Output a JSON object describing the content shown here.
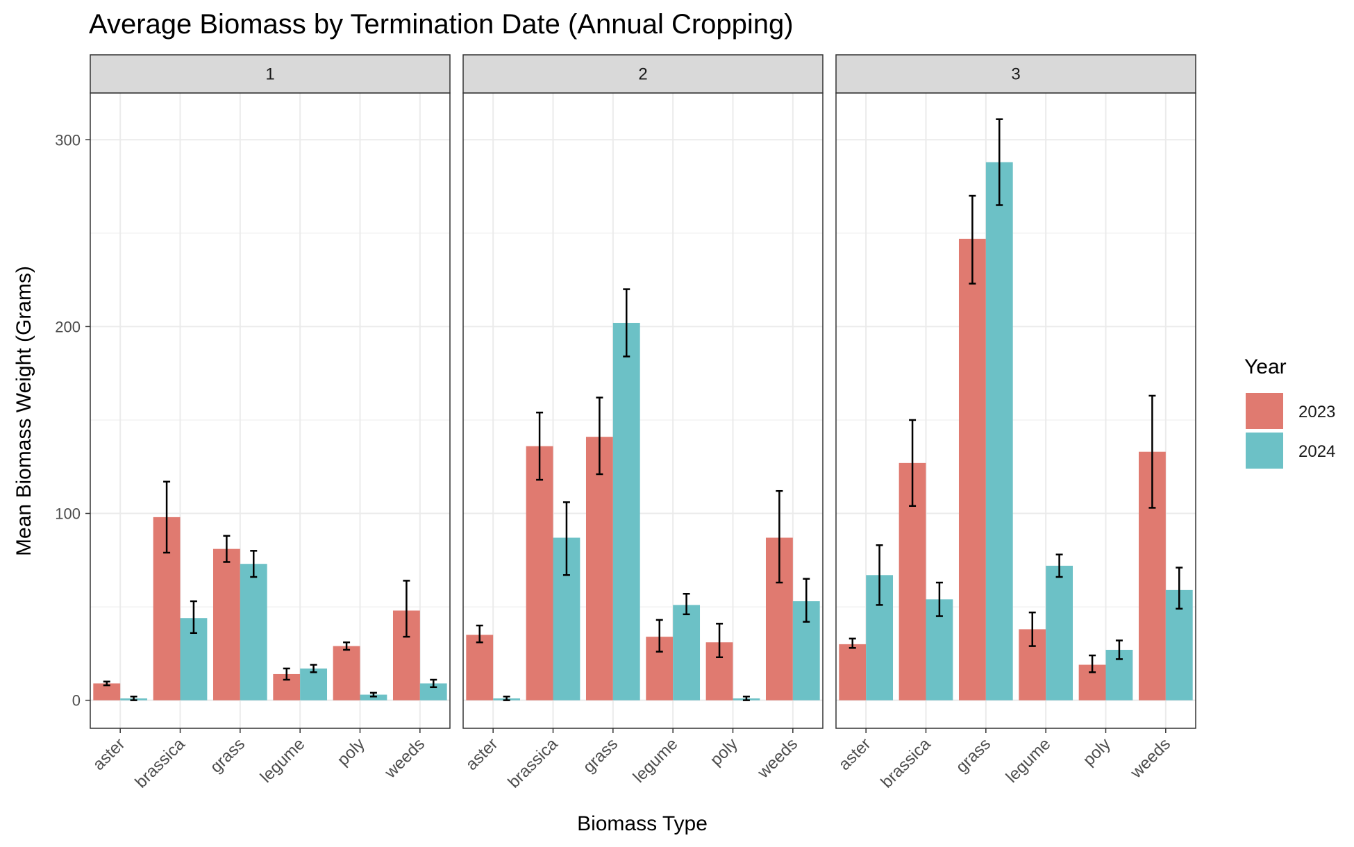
{
  "chart_data": {
    "type": "bar",
    "title": "Average Biomass by Termination Date (Annual Cropping)",
    "xlabel": "Biomass Type",
    "ylabel": "Mean Biomass Weight (Grams)",
    "ylim": [
      -15,
      325
    ],
    "y_ticks": [
      0,
      100,
      200,
      300
    ],
    "grid": true,
    "legend": {
      "title": "Year",
      "placement": "right",
      "entries": [
        {
          "name": "2023",
          "color": "#E07A70"
        },
        {
          "name": "2024",
          "color": "#6CC1C6"
        }
      ]
    },
    "categories": [
      "aster",
      "brassica",
      "grass",
      "legume",
      "poly",
      "weeds"
    ],
    "facets": [
      {
        "label": "1",
        "series": [
          {
            "name": "2023",
            "values": [
              9,
              98,
              81,
              14,
              29,
              48
            ],
            "error_low": [
              8,
              79,
              74,
              11,
              27,
              34
            ],
            "error_high": [
              10,
              117,
              88,
              17,
              31,
              64
            ]
          },
          {
            "name": "2024",
            "values": [
              1,
              44,
              73,
              17,
              3,
              9
            ],
            "error_low": [
              0,
              36,
              66,
              15,
              2,
              7
            ],
            "error_high": [
              2,
              53,
              80,
              19,
              4,
              11
            ]
          }
        ]
      },
      {
        "label": "2",
        "series": [
          {
            "name": "2023",
            "values": [
              35,
              136,
              141,
              34,
              31,
              87
            ],
            "error_low": [
              31,
              118,
              121,
              26,
              23,
              63
            ],
            "error_high": [
              40,
              154,
              162,
              43,
              41,
              112
            ]
          },
          {
            "name": "2024",
            "values": [
              1,
              87,
              202,
              51,
              1,
              53
            ],
            "error_low": [
              0,
              67,
              184,
              46,
              0,
              42
            ],
            "error_high": [
              2,
              106,
              220,
              57,
              2,
              65
            ]
          }
        ]
      },
      {
        "label": "3",
        "series": [
          {
            "name": "2023",
            "values": [
              30,
              127,
              247,
              38,
              19,
              133
            ],
            "error_low": [
              28,
              104,
              223,
              29,
              15,
              103
            ],
            "error_high": [
              33,
              150,
              270,
              47,
              24,
              163
            ]
          },
          {
            "name": "2024",
            "values": [
              67,
              54,
              288,
              72,
              27,
              59
            ],
            "error_low": [
              51,
              45,
              265,
              66,
              22,
              49
            ],
            "error_high": [
              83,
              63,
              311,
              78,
              32,
              71
            ]
          }
        ]
      }
    ],
    "colors": {
      "strip_fill": "#D9D9D9",
      "panel_border": "#333333",
      "grid": "#EBEBEB",
      "errorbar": "#000000"
    }
  }
}
